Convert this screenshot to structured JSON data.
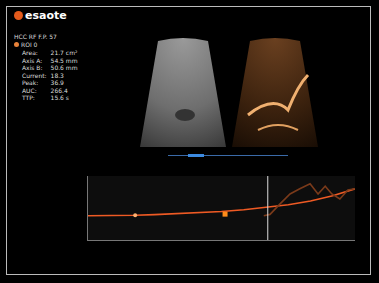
{
  "header": {
    "logo": "esaote",
    "study": "HCC RF F.P. 57",
    "roi": "ROI 0",
    "measurements": [
      {
        "label": "Area:",
        "value": "21.7 cm²"
      },
      {
        "label": "Axis A:",
        "value": "54.5 mm"
      },
      {
        "label": "Axis B:",
        "value": "50.6 mm"
      },
      {
        "label": "Current:",
        "value": "18.3"
      },
      {
        "label": "Peak:",
        "value": "36.9"
      },
      {
        "label": "AUC:",
        "value": "266.4"
      },
      {
        "label": "TTP:",
        "value": "15.6 s"
      }
    ]
  },
  "chart_data": {
    "type": "line",
    "xlim": [
      0,
      60
    ],
    "ylim": [
      0,
      50
    ],
    "tick_labels": false,
    "grid": false,
    "series": [
      {
        "color": "#ee5a24",
        "x": [
          0,
          5,
          10.6,
          15,
          20,
          25,
          30,
          35,
          40,
          45,
          50,
          55,
          60
        ],
        "values": [
          19,
          19,
          19.3,
          19.8,
          20.5,
          21.3,
          22.3,
          23.6,
          25.3,
          27.5,
          30.5,
          34.5,
          40
        ]
      },
      {
        "color": "#7a3a1a",
        "x": [
          39.5,
          40.9,
          43.1,
          45.4,
          47.6,
          49.9,
          51.7,
          53.3,
          54.8,
          56.6,
          58.4,
          60
        ],
        "values": [
          19,
          20,
          28,
          36,
          40,
          44,
          36,
          42,
          36,
          32,
          39,
          40
        ]
      }
    ],
    "cursor_x": 40.4,
    "markers": [
      {
        "x": 10.6,
        "y": 19.3,
        "marker": "circle",
        "color": "#ffb070"
      },
      {
        "x": 30.8,
        "y": 20.2,
        "marker": "square",
        "color": "#ff8c1a"
      }
    ]
  }
}
